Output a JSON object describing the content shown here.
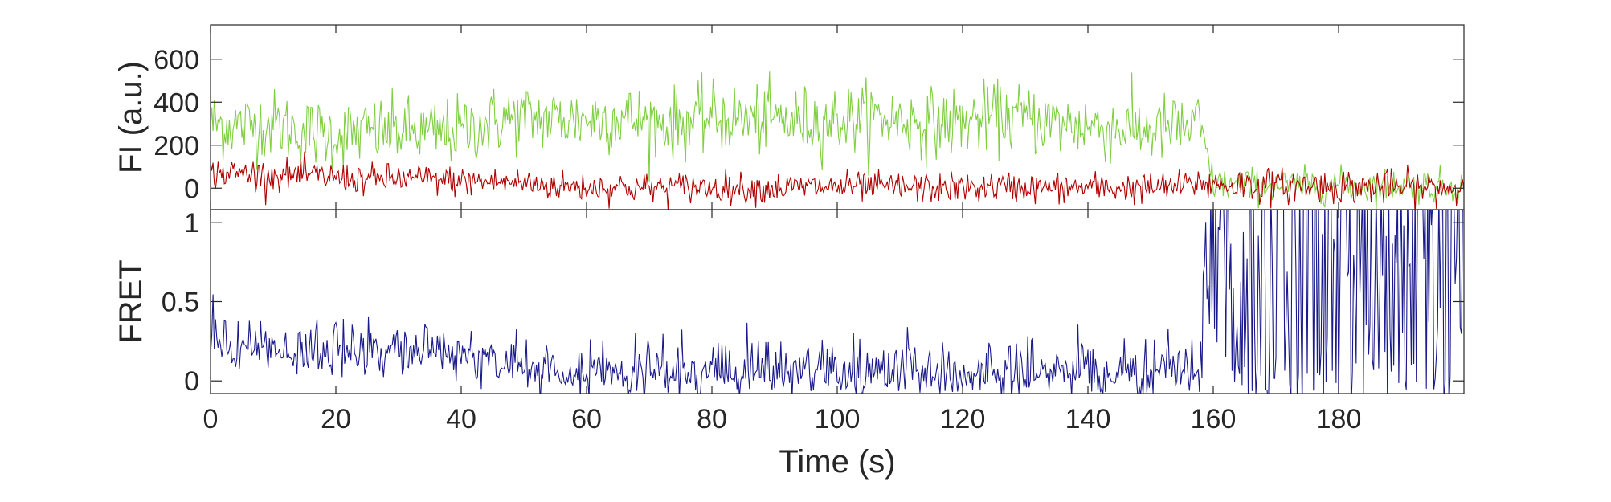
{
  "chart_data": [
    {
      "type": "line",
      "ylabel": "FI (a.u.)",
      "xlim": [
        0,
        200
      ],
      "ylim": [
        -100,
        760
      ],
      "yticks": [
        0,
        200,
        400,
        600
      ],
      "grid": false,
      "series": [
        {
          "color": "#7fcf3f",
          "x": [
            0,
            5,
            10,
            15,
            20,
            25,
            30,
            35,
            40,
            45,
            50,
            55,
            60,
            65,
            70,
            75,
            80,
            85,
            90,
            95,
            100,
            105,
            110,
            115,
            120,
            125,
            130,
            135,
            140,
            145,
            150,
            155,
            158,
            160,
            165,
            170,
            175,
            180,
            185,
            190,
            195,
            200
          ],
          "values": [
            300,
            290,
            300,
            260,
            250,
            260,
            270,
            250,
            270,
            310,
            330,
            320,
            320,
            330,
            310,
            300,
            330,
            320,
            320,
            310,
            320,
            330,
            320,
            300,
            310,
            330,
            330,
            300,
            290,
            280,
            270,
            280,
            290,
            20,
            15,
            10,
            15,
            15,
            10,
            15,
            10,
            10
          ]
        },
        {
          "color": "#b00000",
          "x": [
            0,
            5,
            10,
            15,
            20,
            25,
            30,
            35,
            40,
            45,
            50,
            55,
            60,
            65,
            70,
            75,
            80,
            85,
            90,
            95,
            100,
            105,
            110,
            115,
            120,
            125,
            130,
            135,
            140,
            145,
            150,
            155,
            158,
            160,
            165,
            170,
            175,
            180,
            185,
            190,
            195,
            200
          ],
          "values": [
            70,
            70,
            60,
            60,
            50,
            40,
            45,
            40,
            30,
            30,
            25,
            10,
            5,
            5,
            0,
            5,
            5,
            0,
            0,
            5,
            5,
            5,
            5,
            0,
            0,
            5,
            5,
            0,
            5,
            0,
            0,
            10,
            25,
            20,
            15,
            10,
            10,
            10,
            5,
            5,
            0,
            0
          ]
        }
      ]
    },
    {
      "type": "line",
      "xlabel": "Time (s)",
      "ylabel": "FRET",
      "xlim": [
        0,
        200
      ],
      "ylim": [
        -0.08,
        1.08
      ],
      "xticks": [
        0,
        20,
        40,
        60,
        80,
        100,
        120,
        140,
        160,
        180
      ],
      "yticks": [
        0,
        0.5,
        1
      ],
      "ytick_labels": [
        "0",
        "0.5",
        "1"
      ],
      "grid": false,
      "series": [
        {
          "color": "#1a1a8c",
          "x": [
            0,
            5,
            10,
            15,
            20,
            25,
            30,
            35,
            40,
            45,
            50,
            55,
            60,
            65,
            70,
            75,
            80,
            85,
            90,
            95,
            100,
            105,
            110,
            115,
            120,
            125,
            130,
            135,
            140,
            145,
            150,
            155,
            158,
            160,
            165,
            170,
            175,
            180,
            185,
            190,
            195,
            200
          ],
          "values": [
            0.2,
            0.2,
            0.18,
            0.17,
            0.17,
            0.16,
            0.18,
            0.2,
            0.15,
            0.12,
            0.1,
            0.05,
            0.05,
            0.04,
            0.03,
            0.04,
            0.05,
            0.04,
            0.04,
            0.05,
            0.05,
            0.05,
            0.05,
            0.04,
            0.04,
            0.05,
            0.05,
            0.04,
            0.05,
            0.04,
            0.04,
            0.05,
            0.06,
            0.5,
            0.5,
            0.5,
            0.5,
            0.5,
            0.5,
            0.5,
            0.5,
            0.5
          ]
        }
      ]
    }
  ]
}
